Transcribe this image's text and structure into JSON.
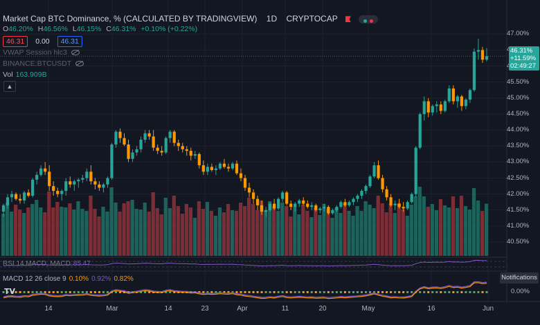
{
  "header": {
    "title": "Market Cap BTC Dominance, % (CALCULATED BY TRADINGVIEW)",
    "interval": "1D",
    "exchange": "CRYPTOCAP"
  },
  "ohlc": {
    "o_label": "O",
    "o_value": "46.20%",
    "h_label": "H",
    "h_value": "46.56%",
    "l_label": "L",
    "l_value": "46.15%",
    "c_label": "C",
    "c_value": "46.31%",
    "change": "+0.10% (+0.22%)"
  },
  "trade_boxes": {
    "sell": "46.31",
    "spread": "0.00",
    "buy": "46.31"
  },
  "indicators": {
    "vwap": "VWAP Session hlc3",
    "binance": "BINANCE:BTCUSDT",
    "vol_label": "Vol",
    "vol_value": "163.909B",
    "rsi_label": "RSI 14 MACD, MACD",
    "rsi_value": "85.47",
    "macd_label": "MACD 12 26 close 9",
    "macd_v1": "0.10%",
    "macd_v2": "0.92%",
    "macd_v3": "0.82%"
  },
  "price_axis": [
    "47.00%",
    "46.50%",
    "46.00%",
    "45.50%",
    "45.00%",
    "44.50%",
    "44.00%",
    "43.50%",
    "43.00%",
    "42.50%",
    "42.00%",
    "41.50%",
    "41.00%",
    "40.50%"
  ],
  "price_tag": {
    "price": "46.31%",
    "change": "+11.59%",
    "countdown": "02:49:27"
  },
  "macd_axis": "0.00%",
  "time_axis": [
    "14",
    "Mar",
    "14",
    "23",
    "Apr",
    "11",
    "20",
    "May",
    "16",
    "Jun"
  ],
  "notifications": "Notifications",
  "colors": {
    "up": "#26a69a",
    "down": "#ff9800",
    "background": "#131722",
    "grid": "#1e222d"
  },
  "chart_data": {
    "type": "candlestick",
    "y_unit": "%",
    "ylim": [
      40.2,
      47.2
    ],
    "candles": [
      [
        41.45,
        41.7,
        41.3,
        41.65
      ],
      [
        41.65,
        42.0,
        41.55,
        41.9
      ],
      [
        41.9,
        42.1,
        41.75,
        42.0
      ],
      [
        42.0,
        42.05,
        41.8,
        41.85
      ],
      [
        41.85,
        42.0,
        41.7,
        41.8
      ],
      [
        41.8,
        42.1,
        41.7,
        42.05
      ],
      [
        42.05,
        42.15,
        41.9,
        41.95
      ],
      [
        41.95,
        42.5,
        41.9,
        42.45
      ],
      [
        42.45,
        42.7,
        42.3,
        42.6
      ],
      [
        42.6,
        42.9,
        42.55,
        42.8
      ],
      [
        42.8,
        43.0,
        42.6,
        42.7
      ],
      [
        42.7,
        42.9,
        42.1,
        42.25
      ],
      [
        42.25,
        42.4,
        41.95,
        42.1
      ],
      [
        42.1,
        42.2,
        41.9,
        42.0
      ],
      [
        42.0,
        42.15,
        41.8,
        42.1
      ],
      [
        42.1,
        42.5,
        41.95,
        42.4
      ],
      [
        42.4,
        42.55,
        42.2,
        42.3
      ],
      [
        42.3,
        42.45,
        42.1,
        42.4
      ],
      [
        42.4,
        42.5,
        42.2,
        42.45
      ],
      [
        42.45,
        42.6,
        42.35,
        42.5
      ],
      [
        42.5,
        42.8,
        42.4,
        42.7
      ],
      [
        42.7,
        42.9,
        42.3,
        42.4
      ],
      [
        42.4,
        42.5,
        42.15,
        42.3
      ],
      [
        42.3,
        42.4,
        42.1,
        42.2
      ],
      [
        42.2,
        42.35,
        42.05,
        42.3
      ],
      [
        42.3,
        42.55,
        42.2,
        42.5
      ],
      [
        42.5,
        43.6,
        42.45,
        43.55
      ],
      [
        43.55,
        44.0,
        43.45,
        43.95
      ],
      [
        43.95,
        44.05,
        43.6,
        43.75
      ],
      [
        43.75,
        43.9,
        43.5,
        43.55
      ],
      [
        43.55,
        43.7,
        43.0,
        43.1
      ],
      [
        43.1,
        43.4,
        43.0,
        43.3
      ],
      [
        43.3,
        43.5,
        43.2,
        43.4
      ],
      [
        43.4,
        43.8,
        43.3,
        43.7
      ],
      [
        43.7,
        44.0,
        43.6,
        43.9
      ],
      [
        43.9,
        44.0,
        43.7,
        43.8
      ],
      [
        43.8,
        44.0,
        43.35,
        43.45
      ],
      [
        43.45,
        43.55,
        43.25,
        43.35
      ],
      [
        43.35,
        43.5,
        43.2,
        43.3
      ],
      [
        43.3,
        43.8,
        43.25,
        43.75
      ],
      [
        43.75,
        44.0,
        43.6,
        43.95
      ],
      [
        43.95,
        44.0,
        43.5,
        43.6
      ],
      [
        43.6,
        43.7,
        43.35,
        43.5
      ],
      [
        43.5,
        43.6,
        43.3,
        43.4
      ],
      [
        43.4,
        43.5,
        43.2,
        43.35
      ],
      [
        43.35,
        43.45,
        43.05,
        43.2
      ],
      [
        43.2,
        43.35,
        43.1,
        43.25
      ],
      [
        43.25,
        43.3,
        42.8,
        42.9
      ],
      [
        42.9,
        43.05,
        42.6,
        42.7
      ],
      [
        42.7,
        42.95,
        42.6,
        42.85
      ],
      [
        42.85,
        42.95,
        42.7,
        42.75
      ],
      [
        42.75,
        42.9,
        42.6,
        42.8
      ],
      [
        42.8,
        43.0,
        42.75,
        42.95
      ],
      [
        42.95,
        43.1,
        42.8,
        42.85
      ],
      [
        42.85,
        42.95,
        42.7,
        42.8
      ],
      [
        42.8,
        43.0,
        42.75,
        42.95
      ],
      [
        42.95,
        43.05,
        42.6,
        42.65
      ],
      [
        42.65,
        42.8,
        42.4,
        42.5
      ],
      [
        42.5,
        42.6,
        42.1,
        42.2
      ],
      [
        42.2,
        42.35,
        41.9,
        42.05
      ],
      [
        42.05,
        42.15,
        41.7,
        41.85
      ],
      [
        41.85,
        41.95,
        41.5,
        41.65
      ],
      [
        41.65,
        41.8,
        41.35,
        41.45
      ],
      [
        41.45,
        41.6,
        41.3,
        41.5
      ],
      [
        41.5,
        41.75,
        41.45,
        41.7
      ],
      [
        41.7,
        41.85,
        41.5,
        41.55
      ],
      [
        41.55,
        41.9,
        41.5,
        41.85
      ],
      [
        41.85,
        42.1,
        41.75,
        42.05
      ],
      [
        42.05,
        42.1,
        41.65,
        41.7
      ],
      [
        41.7,
        41.8,
        41.5,
        41.6
      ],
      [
        41.6,
        41.75,
        41.45,
        41.7
      ],
      [
        41.7,
        41.85,
        41.6,
        41.8
      ],
      [
        41.8,
        41.9,
        41.65,
        41.7
      ],
      [
        41.7,
        41.8,
        41.55,
        41.6
      ],
      [
        41.6,
        41.75,
        41.5,
        41.65
      ],
      [
        41.65,
        41.7,
        41.45,
        41.5
      ],
      [
        41.5,
        41.6,
        41.4,
        41.55
      ],
      [
        41.55,
        41.7,
        41.45,
        41.6
      ],
      [
        41.6,
        41.65,
        41.35,
        41.4
      ],
      [
        41.4,
        41.55,
        41.35,
        41.5
      ],
      [
        41.5,
        41.65,
        41.45,
        41.6
      ],
      [
        41.6,
        41.8,
        41.55,
        41.75
      ],
      [
        41.75,
        41.85,
        41.6,
        41.65
      ],
      [
        41.65,
        41.8,
        41.6,
        41.75
      ],
      [
        41.75,
        41.9,
        41.65,
        41.85
      ],
      [
        41.85,
        42.0,
        41.75,
        41.95
      ],
      [
        41.95,
        42.15,
        41.85,
        42.1
      ],
      [
        42.1,
        42.3,
        42.0,
        42.25
      ],
      [
        42.25,
        42.6,
        42.2,
        42.55
      ],
      [
        42.55,
        43.0,
        42.5,
        42.9
      ],
      [
        42.9,
        43.05,
        42.45,
        42.5
      ],
      [
        42.5,
        42.6,
        42.05,
        42.15
      ],
      [
        42.15,
        42.25,
        41.8,
        41.9
      ],
      [
        41.9,
        42.0,
        41.6,
        41.65
      ],
      [
        41.65,
        41.8,
        41.5,
        41.7
      ],
      [
        41.7,
        41.85,
        41.55,
        41.6
      ],
      [
        41.6,
        41.75,
        41.45,
        41.55
      ],
      [
        41.55,
        41.8,
        41.5,
        41.75
      ],
      [
        41.75,
        42.05,
        41.7,
        42.0
      ],
      [
        42.0,
        43.5,
        41.9,
        43.45
      ],
      [
        43.45,
        44.55,
        43.4,
        44.5
      ],
      [
        44.5,
        45.05,
        44.3,
        44.9
      ],
      [
        44.9,
        45.0,
        44.4,
        44.55
      ],
      [
        44.55,
        44.8,
        44.45,
        44.75
      ],
      [
        44.75,
        44.9,
        44.55,
        44.8
      ],
      [
        44.8,
        44.9,
        44.5,
        44.6
      ],
      [
        44.6,
        44.95,
        44.55,
        44.9
      ],
      [
        44.9,
        45.4,
        44.85,
        45.3
      ],
      [
        45.3,
        45.4,
        44.8,
        44.9
      ],
      [
        44.9,
        45.1,
        44.7,
        45.05
      ],
      [
        45.05,
        45.1,
        44.6,
        44.75
      ],
      [
        44.75,
        45.0,
        44.65,
        44.95
      ],
      [
        44.95,
        45.3,
        44.85,
        45.25
      ],
      [
        45.25,
        46.55,
        45.2,
        46.45
      ],
      [
        46.45,
        46.85,
        46.2,
        46.5
      ],
      [
        46.5,
        46.6,
        46.1,
        46.2
      ],
      [
        46.2,
        46.56,
        46.15,
        46.31
      ]
    ]
  }
}
